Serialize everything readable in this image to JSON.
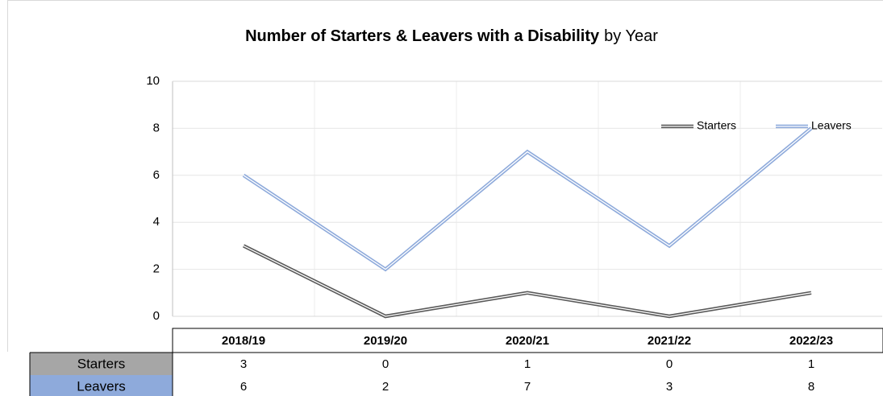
{
  "chart_data": {
    "type": "line",
    "title": "Number of Starters & Leavers with a Disability",
    "subtitle": "by Year",
    "categories": [
      "2018/19",
      "2019/20",
      "2020/21",
      "2021/22",
      "2022/23"
    ],
    "series": [
      {
        "name": "Starters",
        "color": "#595959",
        "values": [
          3,
          0,
          1,
          0,
          1
        ]
      },
      {
        "name": "Leavers",
        "color": "#8eaadb",
        "values": [
          6,
          2,
          7,
          3,
          8
        ]
      }
    ],
    "ylim": [
      0,
      10
    ],
    "yticks": [
      0,
      2,
      4,
      6,
      8,
      10
    ],
    "grid": true,
    "legend": "top-right",
    "table_colors": [
      "#a6a6a6",
      "#8eaadb"
    ]
  }
}
